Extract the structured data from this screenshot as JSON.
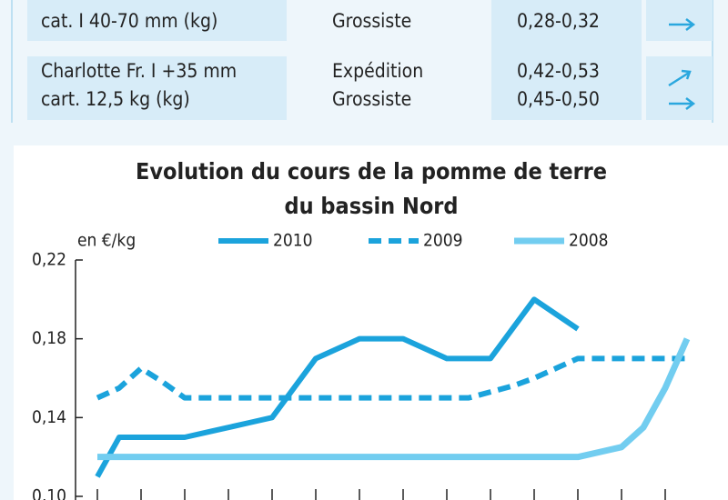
{
  "table": {
    "rows": [
      {
        "product": [
          "cat. I 40-70 mm (kg)"
        ],
        "market": [
          "Grossiste"
        ],
        "price": [
          "0,28-0,32"
        ]
      },
      {
        "product": [
          "Charlotte Fr. I +35 mm",
          "cart. 12,5 kg (kg)"
        ],
        "market": [
          "Expédition",
          "Grossiste"
        ],
        "price": [
          "0,42-0,53",
          "0,45-0,50"
        ]
      }
    ]
  },
  "chart_data": {
    "type": "line",
    "title": [
      "Evolution du cours de la pomme de terre",
      "du bassin Nord"
    ],
    "y_label": "en €/kg",
    "categories": [
      null,
      null,
      null,
      null,
      null,
      null,
      null,
      null,
      null,
      null,
      null,
      null,
      null,
      null,
      null,
      null,
      null,
      null,
      null,
      null,
      null,
      null,
      null,
      null,
      null,
      null,
      null,
      null
    ],
    "ylim": [
      0.1,
      0.22
    ],
    "yticks": [
      {
        "value": 0.1,
        "label": "0,10"
      },
      {
        "value": 0.14,
        "label": "0,14"
      },
      {
        "value": 0.18,
        "label": "0,18"
      },
      {
        "value": 0.22,
        "label": "0,22"
      }
    ],
    "series": [
      {
        "name": "2010",
        "color": "#1ba3dc",
        "style": "solid",
        "values": [
          0.11,
          0.13,
          0.13,
          0.13,
          0.13,
          0.1325,
          0.135,
          0.1375,
          0.14,
          0.155,
          0.17,
          0.175,
          0.18,
          0.18,
          0.18,
          0.175,
          0.17,
          0.17,
          0.17,
          0.185,
          0.2,
          0.1925,
          0.185,
          null,
          null,
          null,
          null,
          null
        ]
      },
      {
        "name": "2009",
        "color": "#1ba3dc",
        "style": "dashed",
        "values": [
          0.15,
          0.155,
          0.165,
          0.158,
          0.15,
          0.15,
          0.15,
          0.15,
          0.15,
          0.15,
          0.15,
          0.15,
          0.15,
          0.15,
          0.15,
          0.15,
          0.15,
          0.15,
          0.153,
          0.156,
          0.16,
          0.165,
          0.17,
          0.17,
          0.17,
          0.17,
          0.17,
          0.17
        ]
      },
      {
        "name": "2008",
        "color": "#72cdf0",
        "style": "solid",
        "values": [
          0.12,
          0.12,
          0.12,
          0.12,
          0.12,
          0.12,
          0.12,
          0.12,
          0.12,
          0.12,
          0.12,
          0.12,
          0.12,
          0.12,
          0.12,
          0.12,
          0.12,
          0.12,
          0.12,
          0.12,
          0.12,
          0.12,
          0.12,
          0.1225,
          0.125,
          0.135,
          0.155,
          0.18
        ]
      }
    ]
  }
}
